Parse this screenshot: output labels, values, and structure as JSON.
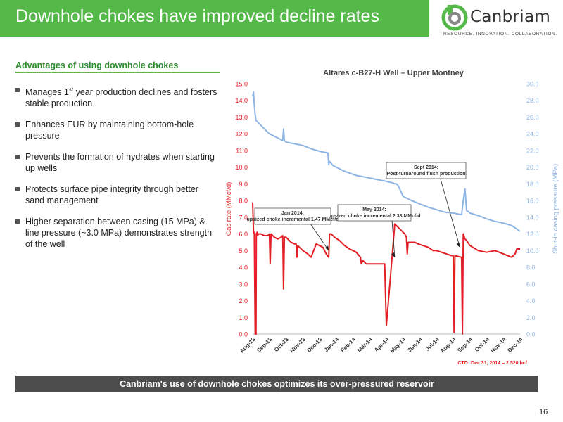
{
  "header": {
    "title": "Downhole chokes have improved decline rates"
  },
  "logo": {
    "name": "Canbriam",
    "tagline": "RESOURCE. INNOVATION. COLLABORATION."
  },
  "left_panel": {
    "heading": "Advantages of using downhole chokes",
    "bullets": [
      {
        "pre": "Manages 1",
        "sup": "st",
        "post": " year production declines and fosters stable production"
      },
      {
        "text": "Enhances EUR by maintaining bottom-hole pressure"
      },
      {
        "text": "Prevents the formation of hydrates when starting up wells"
      },
      {
        "text": "Protects surface pipe integrity through better sand management"
      },
      {
        "text": "Higher separation between casing (15 MPa) & line pressure (~3.0 MPa)  demonstrates strength of the well"
      }
    ]
  },
  "banner": {
    "text": "Canbriam's use of downhole chokes optimizes its over-pressured reservoir"
  },
  "page_number": "16",
  "colors": {
    "gas_rate": "#e31e24",
    "casing_pressure": "#8eb4e3",
    "brand_green": "#54b948"
  },
  "chart_data": {
    "type": "line",
    "title": "Altares c-B27-H Well – Upper Montney",
    "ylabel": "Gas rate (MMcf/d)",
    "y2label": "Shut-in casing pressure (MPa)",
    "ylim": [
      0,
      15
    ],
    "y2lim": [
      0,
      30
    ],
    "yticks": [
      "0.0",
      "1.0",
      "2.0",
      "3.0",
      "4.0",
      "5.0",
      "6.0",
      "7.0",
      "8.0",
      "9.0",
      "10.0",
      "11.0",
      "12.0",
      "13.0",
      "14.0",
      "15.0"
    ],
    "y2ticks": [
      "0.0",
      "2.0",
      "4.0",
      "6.0",
      "8.0",
      "10.0",
      "12.0",
      "14.0",
      "16.0",
      "18.0",
      "20.0",
      "22.0",
      "24.0",
      "26.0",
      "28.0",
      "30.0"
    ],
    "categories": [
      "Aug-13",
      "Sep-13",
      "Oct-13",
      "Nov-13",
      "Dec-13",
      "Jan-14",
      "Feb-14",
      "Mar-14",
      "Apr-14",
      "May-14",
      "Jun-14",
      "Jul-14",
      "Aug-14",
      "Sep-14",
      "Oct-14",
      "Nov-14",
      "Dec-14"
    ],
    "grid": false,
    "series": [
      {
        "name": "Gas rate (MMcf/d)",
        "axis": "left",
        "x": [
          0.0,
          0.05,
          0.1,
          0.15,
          0.2,
          0.22,
          0.27,
          0.3,
          0.35,
          0.5,
          0.7,
          0.9,
          1.0,
          1.05,
          1.1,
          1.3,
          1.5,
          1.7,
          1.8,
          1.85,
          1.9,
          2.0,
          2.3,
          2.5,
          2.6,
          2.65,
          2.7,
          3.0,
          3.3,
          3.5,
          3.8,
          4.0,
          4.2,
          4.4,
          4.55,
          4.6,
          4.7,
          4.9,
          5.2,
          5.5,
          5.8,
          6.2,
          6.45,
          6.5,
          6.6,
          6.8,
          7.0,
          7.5,
          7.9,
          8.0,
          8.3,
          8.5,
          8.9,
          9.1,
          9.2,
          9.25,
          9.3,
          9.5,
          9.7,
          9.9,
          10.2,
          10.5,
          10.8,
          11.0,
          11.3,
          11.6,
          11.9,
          12.0,
          12.05,
          12.1,
          12.5,
          12.55,
          12.6,
          12.7,
          12.8,
          13.0,
          13.5,
          14.0,
          14.5,
          15.0,
          15.5,
          15.7,
          15.8,
          16.0
        ],
        "values": [
          7.9,
          6.2,
          6.0,
          0.0,
          0.0,
          6.0,
          6.1,
          5.9,
          6.0,
          6.0,
          5.9,
          5.9,
          6.0,
          4.2,
          6.0,
          5.8,
          5.7,
          5.8,
          5.9,
          2.7,
          5.8,
          5.8,
          5.5,
          5.4,
          5.4,
          4.6,
          5.3,
          5.0,
          4.8,
          4.6,
          5.4,
          5.3,
          5.2,
          4.8,
          4.6,
          6.0,
          6.0,
          5.8,
          5.6,
          5.3,
          5.1,
          4.9,
          4.6,
          4.2,
          4.4,
          4.2,
          4.2,
          4.2,
          4.2,
          0.5,
          4.1,
          6.6,
          6.2,
          6.0,
          5.8,
          4.8,
          5.5,
          5.5,
          5.5,
          5.4,
          5.3,
          5.2,
          5.0,
          5.0,
          4.9,
          4.8,
          4.7,
          4.7,
          0.1,
          4.7,
          4.6,
          0.0,
          6.0,
          5.7,
          5.6,
          5.3,
          5.0,
          4.9,
          5.0,
          4.8,
          4.6,
          4.8,
          5.1,
          5.1
        ]
      },
      {
        "name": "Shut-in casing pressure (MPa)",
        "axis": "right",
        "x": [
          0.0,
          0.05,
          0.1,
          0.15,
          0.2,
          0.5,
          0.8,
          1.0,
          1.5,
          1.8,
          1.85,
          1.9,
          2.0,
          2.5,
          3.0,
          3.5,
          4.0,
          4.5,
          4.55,
          4.6,
          4.8,
          5.2,
          5.5,
          5.8,
          6.2,
          6.5,
          7.0,
          7.5,
          8.0,
          8.4,
          8.5,
          8.6,
          8.7,
          9.0,
          9.5,
          10.0,
          10.5,
          11.0,
          11.5,
          12.0,
          12.5,
          12.6,
          12.7,
          12.8,
          12.9,
          13.0,
          13.5,
          14.0,
          14.5,
          15.0,
          15.5,
          15.8,
          16.0
        ],
        "values": [
          28.5,
          29.0,
          27.5,
          26.3,
          25.6,
          25.0,
          24.4,
          24.0,
          23.5,
          23.2,
          24.6,
          23.2,
          23.0,
          22.8,
          22.6,
          22.2,
          21.9,
          21.7,
          20.3,
          20.7,
          20.2,
          19.8,
          19.5,
          19.3,
          19.0,
          18.9,
          18.7,
          18.5,
          18.3,
          18.1,
          18.0,
          18.0,
          17.8,
          16.5,
          16.0,
          15.6,
          15.2,
          14.9,
          14.6,
          14.5,
          14.3,
          16.0,
          17.4,
          14.8,
          14.7,
          14.5,
          14.2,
          13.8,
          13.5,
          13.3,
          13.0,
          12.6,
          12.3
        ]
      }
    ],
    "annotations": [
      {
        "text": "Jan 2014: upsized choke incremental 1.47 MMcf/d",
        "x": 4.55,
        "y": 5.0
      },
      {
        "text": "May 2014: upsized choke incremental 2.38 MMcf/d",
        "x": 8.5,
        "y": 4.6
      },
      {
        "text": "Sept 2014: Post-turnaround flush production",
        "x": 12.4,
        "y": 5.2
      }
    ],
    "footnote": "CTD: Dec 31, 2014 = 2.520 bcf"
  }
}
